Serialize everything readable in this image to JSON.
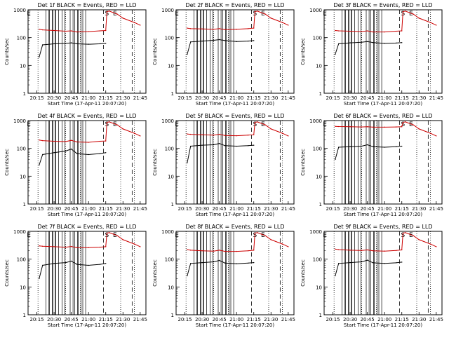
{
  "colors": {
    "events": "#000000",
    "lld": "#cc0000",
    "background": "#ffffff"
  },
  "x_ticks": [
    "20:15",
    "20:30",
    "20:45",
    "21:00",
    "21:15",
    "21:30",
    "21:45"
  ],
  "x_tick_values": [
    15,
    30,
    45,
    60,
    75,
    90,
    105
  ],
  "xlim": [
    7.33,
    110
  ],
  "y_ticks": [
    "1",
    "10",
    "100",
    "1000"
  ],
  "y_tick_values": [
    1,
    10,
    100,
    1000
  ],
  "ylim": [
    1,
    1000
  ],
  "y_scale": "log",
  "xlabel": "Start Time (17-Apr-11 20:07:20)",
  "ylabel": "Counts/sec",
  "markers": [
    {
      "label": "E",
      "x": 8
    },
    {
      "label": "S",
      "x": 76
    },
    {
      "label": "E",
      "x": 83
    }
  ],
  "chart_data": [
    {
      "type": "line",
      "title": "Det 1f BLACK = Events, RED = LLD",
      "x": [
        8,
        17,
        20,
        30,
        40,
        45,
        50,
        60,
        70,
        75,
        76,
        78,
        85,
        90,
        100,
        105
      ],
      "series": [
        {
          "name": "BLACK = Events",
          "values": [
            null,
            20,
            55,
            60,
            62,
            65,
            60,
            58,
            60,
            62,
            null,
            null,
            null,
            null,
            null,
            null
          ]
        },
        {
          "name": "RED = LLD",
          "values": [
            null,
            200,
            190,
            180,
            170,
            175,
            160,
            165,
            175,
            180,
            850,
            900,
            700,
            500,
            350,
            280
          ]
        }
      ]
    },
    {
      "type": "line",
      "title": "Det 2f BLACK = Events, RED = LLD",
      "x": [
        8,
        17,
        20,
        30,
        40,
        45,
        50,
        60,
        70,
        75,
        76,
        78,
        85,
        90,
        100,
        105
      ],
      "series": [
        {
          "name": "BLACK = Events",
          "values": [
            null,
            25,
            70,
            75,
            80,
            85,
            78,
            72,
            75,
            78,
            null,
            null,
            null,
            null,
            null,
            null
          ]
        },
        {
          "name": "RED = LLD",
          "values": [
            null,
            220,
            210,
            205,
            200,
            210,
            195,
            200,
            210,
            220,
            850,
            900,
            700,
            500,
            350,
            280
          ]
        }
      ]
    },
    {
      "type": "line",
      "title": "Det 3f BLACK = Events, RED = LLD",
      "x": [
        8,
        17,
        20,
        30,
        40,
        45,
        50,
        60,
        70,
        75,
        76,
        78,
        85,
        90,
        100,
        105
      ],
      "series": [
        {
          "name": "BLACK = Events",
          "values": [
            null,
            25,
            60,
            65,
            68,
            72,
            66,
            62,
            64,
            66,
            null,
            null,
            null,
            null,
            null,
            null
          ]
        },
        {
          "name": "RED = LLD",
          "values": [
            null,
            180,
            175,
            170,
            165,
            175,
            160,
            160,
            170,
            175,
            850,
            900,
            700,
            500,
            350,
            280
          ]
        }
      ]
    },
    {
      "type": "line",
      "title": "Det 4f BLACK = Events, RED = LLD",
      "x": [
        8,
        17,
        20,
        30,
        40,
        45,
        50,
        60,
        70,
        75,
        76,
        78,
        85,
        90,
        100,
        105
      ],
      "series": [
        {
          "name": "BLACK = Events",
          "values": [
            null,
            25,
            60,
            70,
            80,
            95,
            65,
            60,
            65,
            70,
            null,
            null,
            null,
            null,
            null,
            null
          ]
        },
        {
          "name": "RED = LLD",
          "values": [
            null,
            200,
            190,
            180,
            175,
            195,
            170,
            165,
            180,
            185,
            850,
            900,
            700,
            500,
            350,
            280
          ]
        }
      ]
    },
    {
      "type": "line",
      "title": "Det 5f BLACK = Events, RED = LLD",
      "x": [
        8,
        17,
        20,
        30,
        40,
        45,
        50,
        60,
        70,
        75,
        76,
        78,
        85,
        90,
        100,
        105
      ],
      "series": [
        {
          "name": "BLACK = Events",
          "values": [
            null,
            30,
            120,
            130,
            135,
            150,
            125,
            120,
            125,
            130,
            null,
            null,
            null,
            null,
            null,
            null
          ]
        },
        {
          "name": "RED = LLD",
          "values": [
            null,
            330,
            320,
            310,
            300,
            320,
            290,
            285,
            300,
            310,
            850,
            900,
            700,
            500,
            350,
            280
          ]
        }
      ]
    },
    {
      "type": "line",
      "title": "Det 6f BLACK = Events, RED = LLD",
      "x": [
        8,
        17,
        20,
        30,
        40,
        45,
        50,
        60,
        70,
        75,
        76,
        78,
        85,
        90,
        100,
        105
      ],
      "series": [
        {
          "name": "BLACK = Events",
          "values": [
            null,
            40,
            110,
            115,
            120,
            135,
            115,
            110,
            115,
            120,
            null,
            null,
            null,
            null,
            null,
            null
          ]
        },
        {
          "name": "RED = LLD",
          "values": [
            null,
            620,
            610,
            600,
            590,
            600,
            580,
            580,
            590,
            600,
            850,
            900,
            700,
            500,
            350,
            280
          ]
        }
      ]
    },
    {
      "type": "line",
      "title": "Det 7f BLACK = Events, RED = LLD",
      "x": [
        8,
        17,
        20,
        30,
        40,
        45,
        50,
        60,
        70,
        75,
        76,
        78,
        85,
        90,
        100,
        105
      ],
      "series": [
        {
          "name": "BLACK = Events",
          "values": [
            null,
            20,
            60,
            70,
            75,
            85,
            65,
            60,
            65,
            70,
            null,
            null,
            null,
            null,
            null,
            null
          ]
        },
        {
          "name": "RED = LLD",
          "values": [
            null,
            300,
            290,
            280,
            270,
            285,
            260,
            260,
            270,
            280,
            850,
            900,
            700,
            500,
            350,
            280
          ]
        }
      ]
    },
    {
      "type": "line",
      "title": "Det 8f BLACK = Events, RED = LLD",
      "x": [
        8,
        17,
        20,
        30,
        40,
        45,
        50,
        60,
        70,
        75,
        76,
        78,
        85,
        90,
        100,
        105
      ],
      "series": [
        {
          "name": "BLACK = Events",
          "values": [
            null,
            25,
            70,
            75,
            80,
            90,
            72,
            68,
            72,
            75,
            null,
            null,
            null,
            null,
            null,
            null
          ]
        },
        {
          "name": "RED = LLD",
          "values": [
            null,
            220,
            210,
            200,
            195,
            210,
            190,
            190,
            200,
            210,
            850,
            900,
            700,
            500,
            350,
            280
          ]
        }
      ]
    },
    {
      "type": "line",
      "title": "Det 9f BLACK = Events, RED = LLD",
      "x": [
        8,
        17,
        20,
        30,
        40,
        45,
        50,
        60,
        70,
        75,
        76,
        78,
        85,
        90,
        100,
        105
      ],
      "series": [
        {
          "name": "BLACK = Events",
          "values": [
            null,
            25,
            70,
            75,
            80,
            92,
            74,
            70,
            74,
            78,
            null,
            null,
            null,
            null,
            null,
            null
          ]
        },
        {
          "name": "RED = LLD",
          "values": [
            null,
            230,
            220,
            210,
            205,
            215,
            200,
            195,
            205,
            215,
            850,
            900,
            700,
            500,
            350,
            280
          ]
        }
      ]
    }
  ]
}
